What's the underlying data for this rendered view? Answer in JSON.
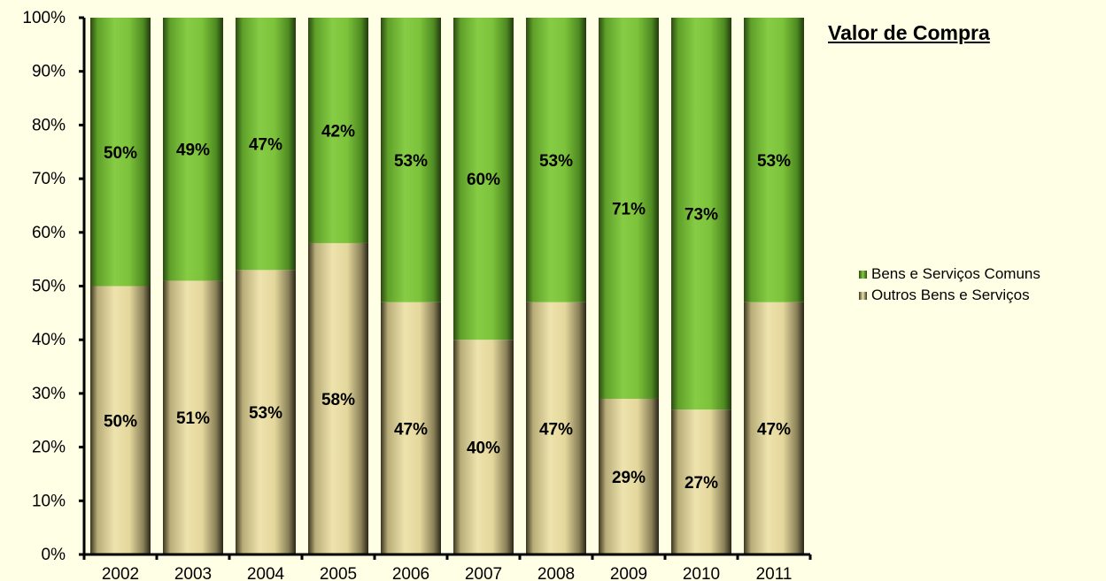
{
  "chart_data": {
    "type": "bar",
    "stacked": true,
    "title": "Valor de Compra",
    "categories": [
      "2002",
      "2003",
      "2004",
      "2005",
      "2006",
      "2007",
      "2008",
      "2009",
      "2010",
      "2011"
    ],
    "series": [
      {
        "name": "Outros Bens e Serviços",
        "values": [
          50,
          51,
          53,
          58,
          47,
          40,
          47,
          29,
          27,
          47
        ],
        "labels": [
          "50%",
          "51%",
          "53%",
          "58%",
          "47%",
          "40%",
          "47%",
          "29%",
          "27%",
          "47%"
        ],
        "color": "#e8dca0"
      },
      {
        "name": "Bens e Serviços Comuns",
        "values": [
          50,
          49,
          47,
          42,
          53,
          60,
          53,
          71,
          73,
          53
        ],
        "labels": [
          "50%",
          "49%",
          "47%",
          "42%",
          "53%",
          "60%",
          "53%",
          "71%",
          "73%",
          "53%"
        ],
        "color": "#7cc23a"
      }
    ],
    "y_ticks": [
      "0%",
      "10%",
      "20%",
      "30%",
      "40%",
      "50%",
      "60%",
      "70%",
      "80%",
      "90%",
      "100%"
    ],
    "ylim": [
      0,
      100
    ],
    "legend_position": "right",
    "grid": false
  }
}
